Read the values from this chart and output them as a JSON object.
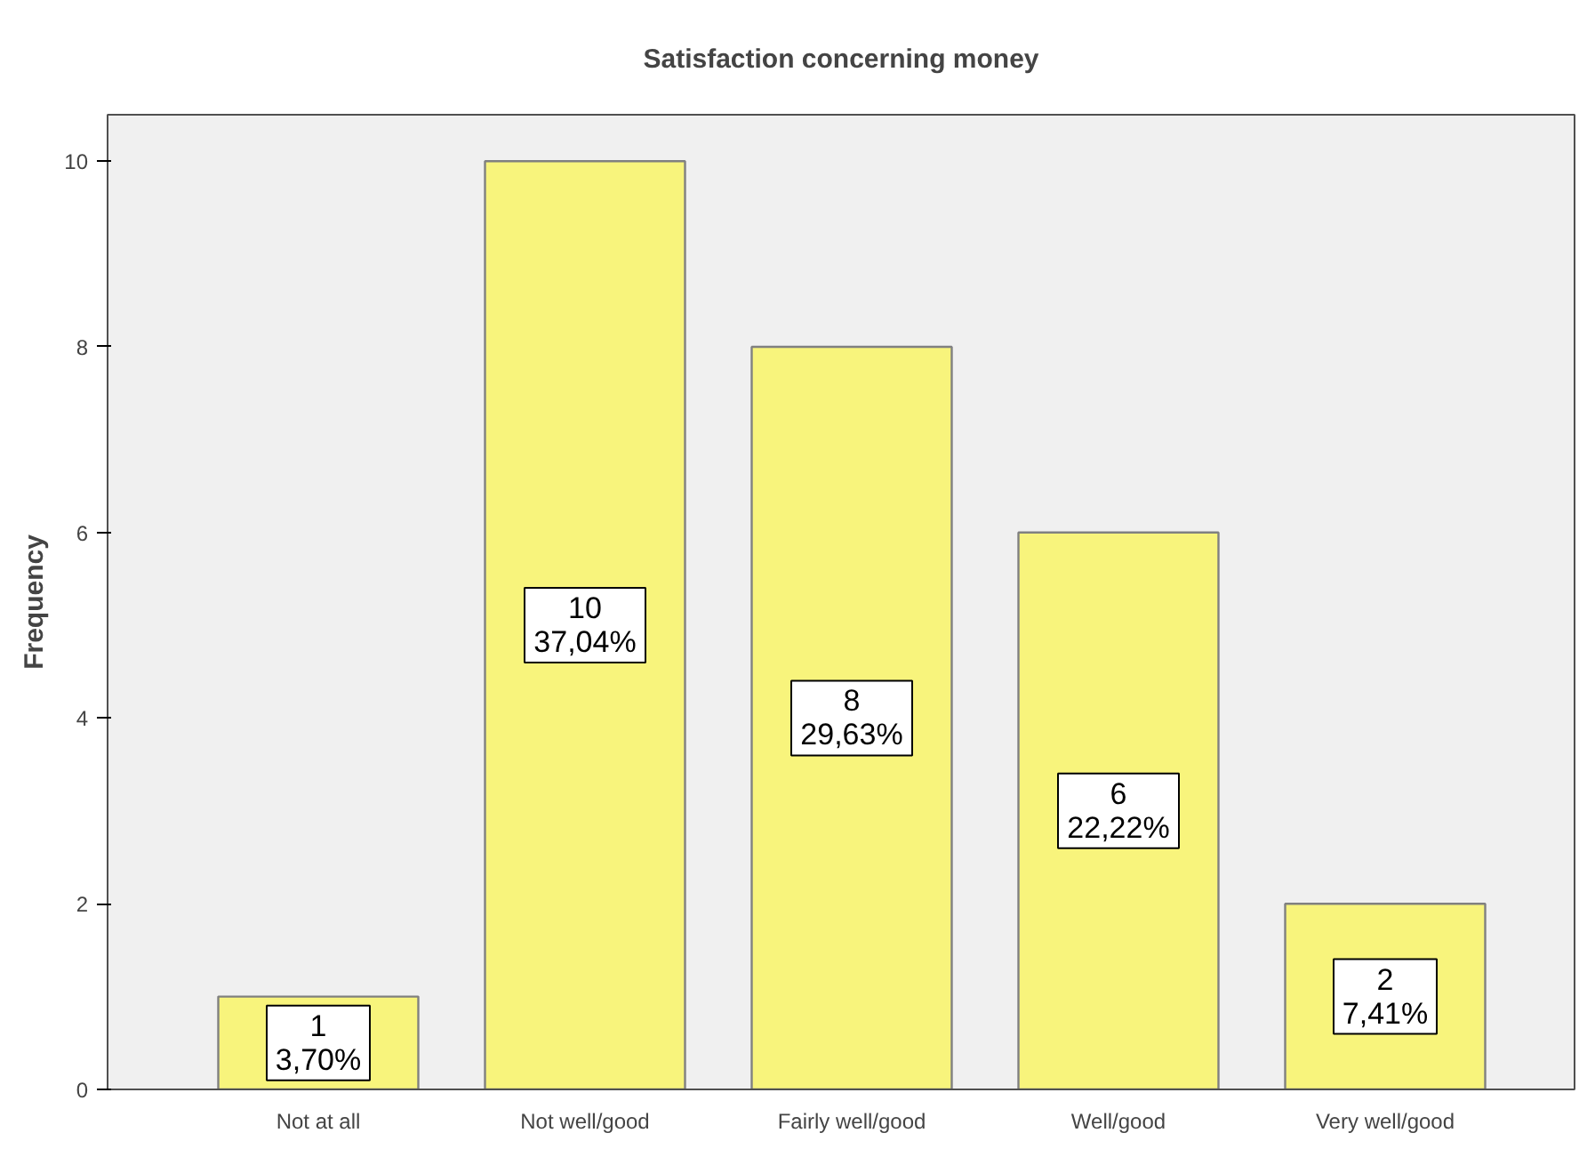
{
  "chart_data": {
    "type": "bar",
    "title": "Satisfaction concerning money",
    "ylabel": "Frequency",
    "categories": [
      "Not at all",
      "Not well/good",
      "Fairly well/good",
      "Well/good",
      "Very well/good"
    ],
    "values": [
      1,
      10,
      8,
      6,
      2
    ],
    "value_labels": [
      "1\n3,70%",
      "10\n37,04%",
      "8\n29,63%",
      "6\n22,22%",
      "2\n7,41%"
    ],
    "color": "#f8f47c",
    "ylim": [
      0,
      10.5
    ],
    "yticks": [
      0,
      2,
      4,
      6,
      8,
      10
    ],
    "grid": false
  }
}
